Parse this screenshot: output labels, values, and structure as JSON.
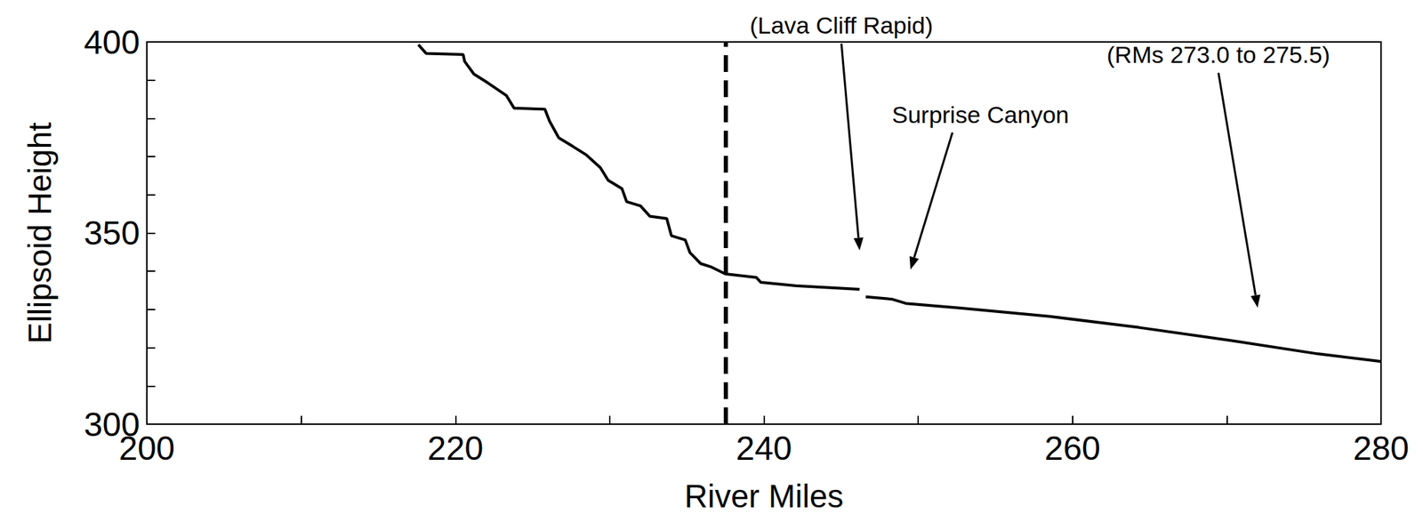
{
  "chart_data": {
    "type": "line",
    "x_label": "River Miles",
    "y_label": "Ellipsoid Height",
    "x": [
      217.6,
      218.1,
      220.5,
      220.6,
      221.2,
      222.1,
      223.3,
      223.8,
      225.8,
      226.1,
      226.7,
      227.6,
      228.5,
      229.4,
      229.9,
      230.8,
      231.1,
      232.0,
      232.6,
      233.7,
      234.0,
      234.9,
      235.2,
      235.9,
      236.6,
      237.5,
      239.5,
      239.8,
      242.1,
      246.2,
      246.4,
      246.6,
      248.3,
      249.2,
      252.7,
      258.5,
      264.3,
      270.1,
      275.9,
      280.0
    ],
    "values": [
      399.3,
      397.0,
      396.7,
      394.9,
      391.6,
      389.3,
      386.0,
      382.7,
      382.4,
      379.3,
      374.9,
      372.7,
      370.4,
      367.1,
      363.8,
      361.6,
      358.2,
      357.1,
      354.4,
      353.8,
      349.3,
      348.2,
      344.9,
      342.0,
      341.1,
      339.3,
      338.4,
      337.1,
      336.2,
      335.3,
      null,
      333.3,
      332.7,
      331.6,
      330.4,
      328.2,
      325.3,
      322.0,
      318.4,
      316.4
    ],
    "color": "#000000",
    "line_style": "solid",
    "xlim": [
      200,
      280
    ],
    "xticks": [
      200,
      220,
      240,
      260,
      280
    ],
    "ylim": [
      300,
      400
    ],
    "yticks": [
      300,
      350,
      400
    ],
    "grid": false,
    "reference_line_x": 237.5,
    "annotations": [
      {
        "text": "(Lava Cliff Rapid)",
        "x": 246.2,
        "y": 344
      },
      {
        "text": "Surprise Canyon",
        "x": 249.5,
        "y": 339
      },
      {
        "text": "(RMs 273.0 to 275.5)",
        "x": 272,
        "y": 329
      }
    ]
  }
}
